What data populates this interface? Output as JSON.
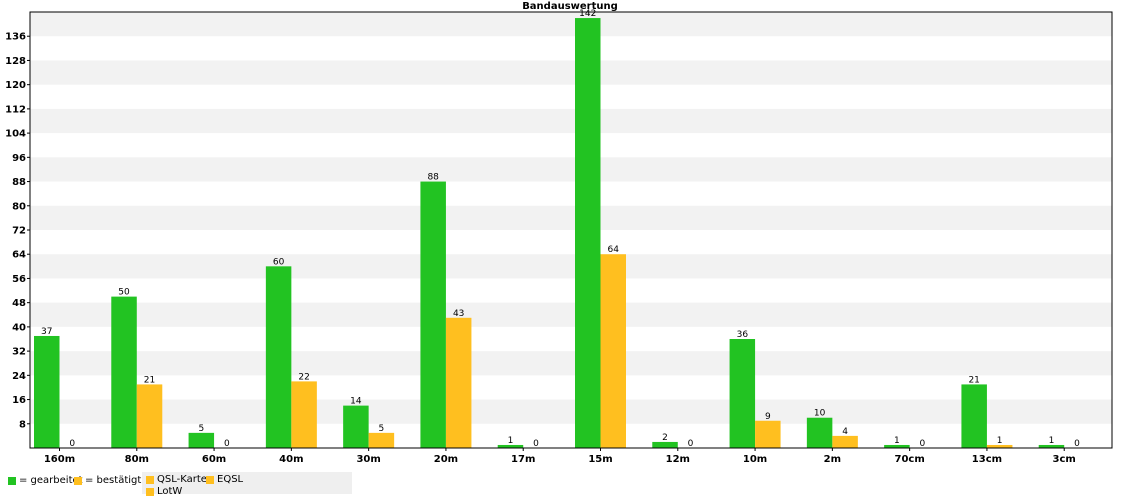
{
  "chart_data": {
    "type": "bar",
    "title": "Bandauswertung",
    "xlabel": "",
    "ylabel": "",
    "categories": [
      "160m",
      "80m",
      "60m",
      "40m",
      "30m",
      "20m",
      "17m",
      "15m",
      "12m",
      "10m",
      "2m",
      "70cm",
      "13cm",
      "3cm"
    ],
    "series": [
      {
        "values": [
          37,
          50,
          5,
          60,
          14,
          88,
          1,
          142,
          2,
          36,
          10,
          1,
          21,
          1
        ],
        "color": "#22c322"
      },
      {
        "values": [
          0,
          21,
          0,
          22,
          5,
          43,
          0,
          64,
          0,
          9,
          4,
          0,
          1,
          0
        ],
        "color": "#ffbf1f"
      }
    ],
    "ylim": [
      0,
      144
    ],
    "yticks": [
      8,
      16,
      24,
      32,
      40,
      48,
      56,
      64,
      72,
      80,
      88,
      96,
      104,
      112,
      120,
      128,
      136
    ],
    "grid": "alternating-bands",
    "legend": {
      "position": "bottom-left",
      "items": [
        {
          "label": "= gearbeitet",
          "color": "#22c322"
        },
        {
          "label": "= bestätigt",
          "color": "#ffbf1f"
        },
        {
          "label": "QSL-Karte",
          "color": "#ffbf1f"
        },
        {
          "label": "EQSL",
          "color": "#ffbf1f"
        },
        {
          "label": "LotW",
          "color": "#ffbf1f"
        }
      ]
    }
  }
}
